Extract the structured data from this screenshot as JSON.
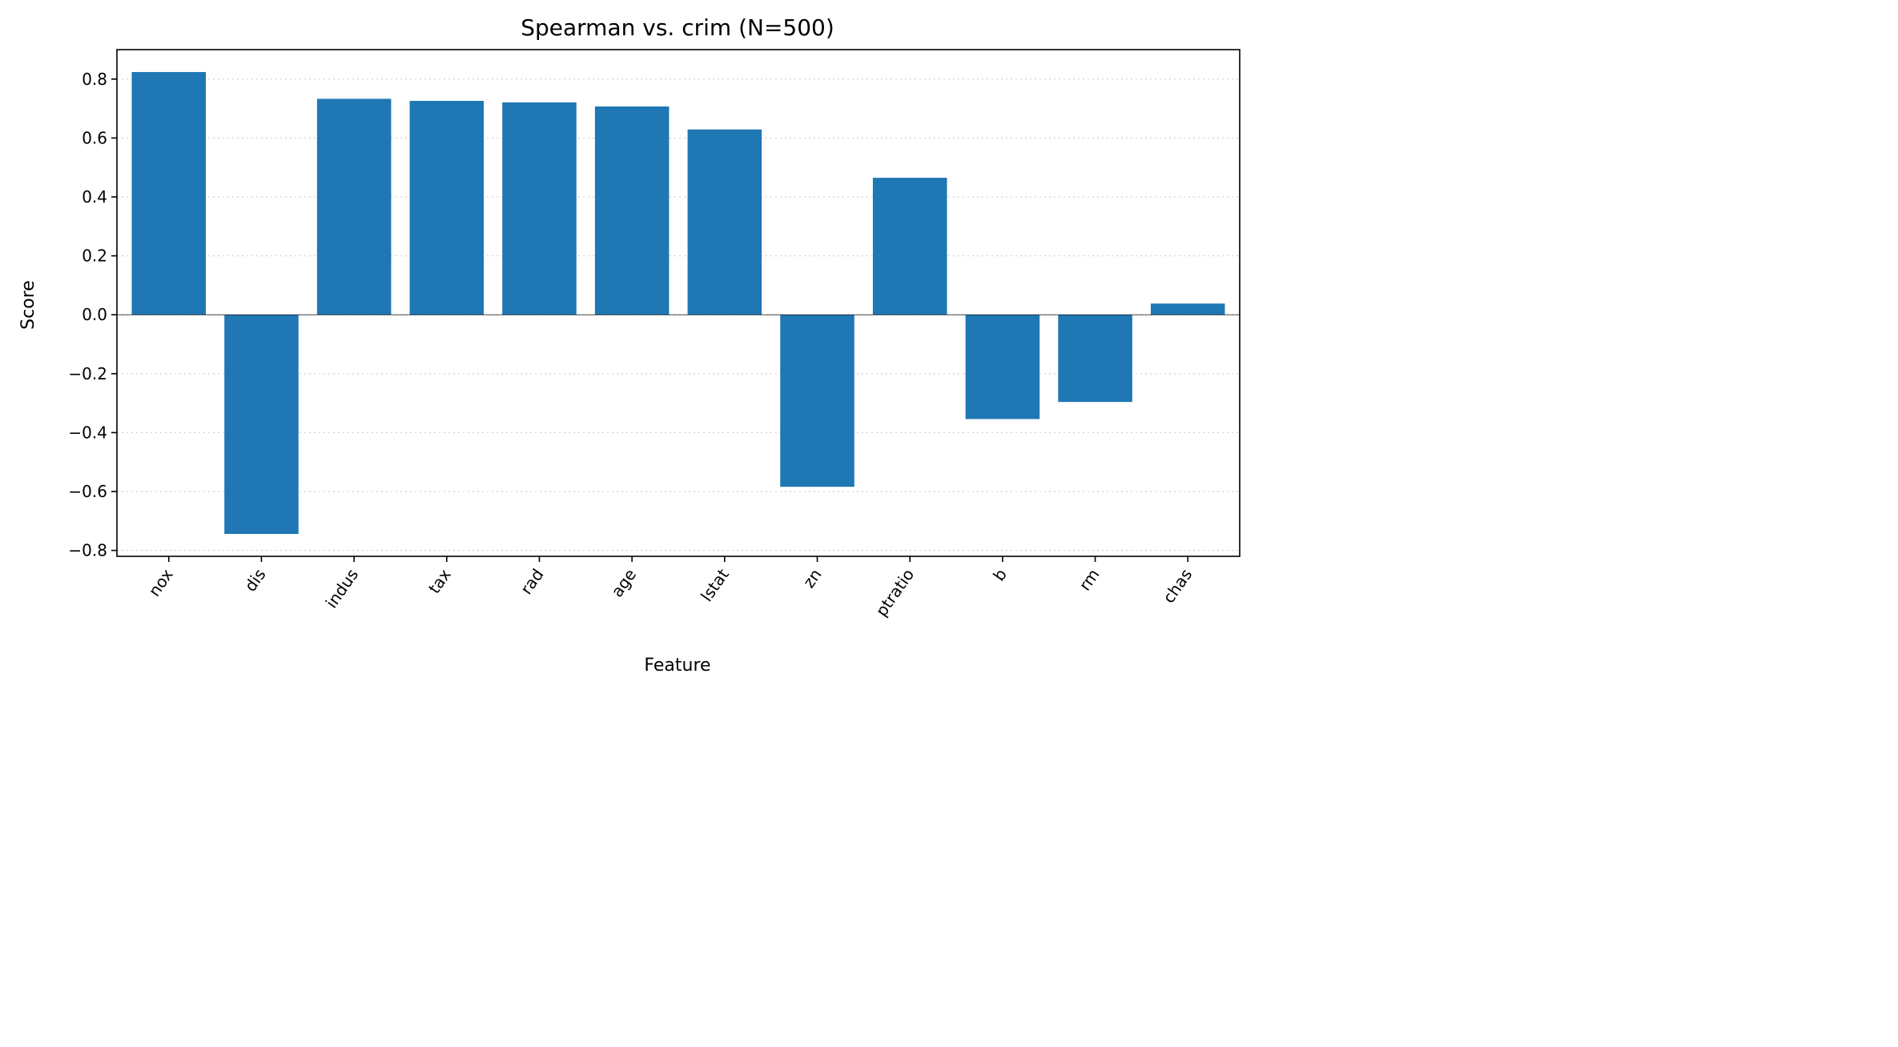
{
  "chart_data": {
    "type": "bar",
    "title": "Spearman vs. crim  (N=500)",
    "xlabel": "Feature",
    "ylabel": "Score",
    "categories": [
      "nox",
      "dis",
      "indus",
      "tax",
      "rad",
      "age",
      "lstat",
      "zn",
      "ptratio",
      "b",
      "rm",
      "chas"
    ],
    "values": [
      0.824,
      -0.744,
      0.733,
      0.726,
      0.721,
      0.707,
      0.629,
      -0.584,
      0.465,
      -0.354,
      -0.296,
      0.038
    ],
    "ylim": [
      -0.82,
      0.9
    ],
    "yticks": [
      0.8,
      0.6,
      0.4,
      0.2,
      0.0,
      -0.2,
      -0.4,
      -0.6,
      -0.8
    ],
    "ytick_labels": [
      "0.8",
      "0.6",
      "0.4",
      "0.2",
      "0.0",
      "−0.2",
      "−0.4",
      "−0.6",
      "−0.8"
    ],
    "bar_color": "#1f77b4",
    "grid": "y-dotted",
    "legend": "none"
  }
}
